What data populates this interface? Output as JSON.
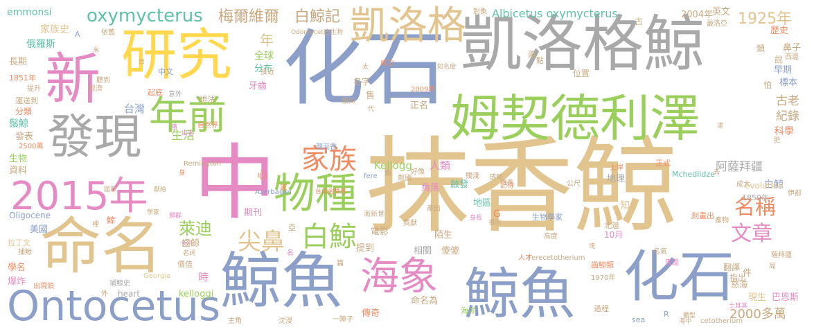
{
  "colors": {
    "tan": "#e2c48f",
    "slate": "#8b9fc8",
    "green": "#9bcf5c",
    "pink": "#e68ac3",
    "yellow": "#ffd84d",
    "orange": "#f08b62",
    "teal": "#5fc2a6",
    "gray": "#a9a9a9",
    "brown": "#c9a980"
  },
  "words": [
    {
      "text": "抹香鯨"
    },
    {
      "text": "化石"
    },
    {
      "text": "凱洛格鯨"
    },
    {
      "text": "中"
    },
    {
      "text": "研究"
    },
    {
      "text": "新"
    },
    {
      "text": "鯨魚"
    },
    {
      "text": "鯨魚"
    },
    {
      "text": "化石"
    },
    {
      "text": "姆契德利澤"
    },
    {
      "text": "命名"
    },
    {
      "text": "發現"
    },
    {
      "text": "Ontocetus"
    },
    {
      "text": "2015年"
    },
    {
      "text": "凱洛格"
    },
    {
      "text": "海象"
    },
    {
      "text": "年前"
    },
    {
      "text": "物種"
    },
    {
      "text": "家族"
    },
    {
      "text": "oxymycterus"
    },
    {
      "text": "尖鼻"
    },
    {
      "text": "白鯨"
    },
    {
      "text": "名稱"
    },
    {
      "text": "文章"
    },
    {
      "text": "梅爾維爾"
    },
    {
      "text": "白鯨記"
    },
    {
      "text": "1925年"
    },
    {
      "text": "Albicetus oxymycterus"
    },
    {
      "text": "阿薩拜疆"
    },
    {
      "text": "2000多萬"
    },
    {
      "text": "Kellogg"
    },
    {
      "text": "萊迪"
    },
    {
      "text": "家族史"
    },
    {
      "text": "emmonsi"
    },
    {
      "text": "2004年"
    },
    {
      "text": "英文"
    },
    {
      "text": "歷史"
    },
    {
      "text": "鼻子"
    },
    {
      "text": "早期"
    },
    {
      "text": "標本"
    },
    {
      "text": "古老"
    },
    {
      "text": "紀錄"
    },
    {
      "text": "科學"
    },
    {
      "text": "俄羅斯"
    },
    {
      "text": "長期"
    },
    {
      "text": "1851年"
    },
    {
      "text": "運送到"
    },
    {
      "text": "分類"
    },
    {
      "text": "鬚鯨"
    },
    {
      "text": "發表"
    },
    {
      "text": "2500萬"
    },
    {
      "text": "生物"
    },
    {
      "text": "資料"
    },
    {
      "text": "全球"
    },
    {
      "text": "分布"
    },
    {
      "text": "牙齒"
    },
    {
      "text": "台灣"
    },
    {
      "text": "生活"
    },
    {
      "text": "人類"
    },
    {
      "text": "啟發"
    },
    {
      "text": "角落"
    },
    {
      "text": "地理"
    },
    {
      "text": "地區"
    },
    {
      "text": "白鯨"
    },
    {
      "text": "1859年"
    },
    {
      "text": "evolution"
    },
    {
      "text": "Oligocene"
    },
    {
      "text": "美國"
    },
    {
      "text": "學名"
    },
    {
      "text": "爆炸"
    },
    {
      "text": "提到"
    },
    {
      "text": "電影"
    },
    {
      "text": "期刊"
    },
    {
      "text": "齒鯨"
    },
    {
      "text": "相關"
    },
    {
      "text": "傻傻"
    },
    {
      "text": "陌生"
    },
    {
      "text": "齒鯨類"
    },
    {
      "text": "翻譯"
    },
    {
      "text": "現生"
    },
    {
      "text": "巴恩斯"
    },
    {
      "text": "命名為"
    },
    {
      "text": "傳奇"
    },
    {
      "text": "海洋"
    },
    {
      "text": "kelloggi"
    },
    {
      "text": "heart"
    },
    {
      "text": "sea"
    },
    {
      "text": "Georgia"
    },
    {
      "text": "Ferecetotherium"
    },
    {
      "text": "cetotherium"
    },
    {
      "text": "Mchedlidze"
    },
    {
      "text": "Azerbaijan"
    },
    {
      "text": "Remington"
    },
    {
      "text": "Odontoceti"
    },
    {
      "text": "2009年"
    },
    {
      "text": "正名"
    },
    {
      "text": "過程"
    },
    {
      "text": "1970年"
    },
    {
      "text": "10月"
    },
    {
      "text": "生物學家"
    },
    {
      "text": "指出"
    },
    {
      "text": "怒海"
    },
    {
      "text": "土耳其"
    },
    {
      "text": "名字"
    },
    {
      "text": "中文"
    },
    {
      "text": "想法"
    },
    {
      "text": "自然界"
    },
    {
      "text": "龍涎香"
    },
    {
      "text": "捕鯨史"
    },
    {
      "text": "出現頭"
    },
    {
      "text": "拉丁文"
    },
    {
      "text": "捕鯨"
    },
    {
      "text": "價值"
    },
    {
      "text": "時"
    },
    {
      "text": "提升"
    },
    {
      "text": "起底"
    },
    {
      "text": "經濟"
    },
    {
      "text": "意外"
    },
    {
      "text": "G"
    },
    {
      "text": "R"
    },
    {
      "text": "A"
    },
    {
      "text": "件"
    },
    {
      "text": "說"
    },
    {
      "text": "怕"
    },
    {
      "text": "類"
    },
    {
      "text": "點"
    },
    {
      "text": "兩"
    },
    {
      "text": "古"
    },
    {
      "text": "年"
    },
    {
      "text": "心"
    },
    {
      "text": "家"
    },
    {
      "text": "鯨"
    },
    {
      "text": "篇"
    },
    {
      "text": "知"
    },
    {
      "text": "最洛亞"
    },
    {
      "text": "西邊"
    },
    {
      "text": "位置"
    },
    {
      "text": "公尺"
    },
    {
      "text": "東邊"
    },
    {
      "text": "伊部"
    },
    {
      "text": "產物"
    },
    {
      "text": "成大"
    },
    {
      "text": "刻畫出"
    },
    {
      "text": "北邊"
    },
    {
      "text": "上岸"
    },
    {
      "text": "正式"
    },
    {
      "text": "名氣"
    },
    {
      "text": "薩拜疆"
    },
    {
      "text": "局"
    },
    {
      "text": "體型"
    },
    {
      "text": "海中"
    },
    {
      "text": "高度"
    },
    {
      "text": "人才"
    },
    {
      "text": "塊"
    },
    {
      "text": "祖宗"
    },
    {
      "text": "身長"
    },
    {
      "text": "產出"
    },
    {
      "text": "貢獻"
    },
    {
      "text": "漸新世"
    },
    {
      "text": "記得"
    },
    {
      "text": "擱淺"
    },
    {
      "text": "感到"
    },
    {
      "text": "台南金華路"
    },
    {
      "text": "fere"
    },
    {
      "text": "趣"
    },
    {
      "text": "鄰國"
    },
    {
      "text": "好像"
    },
    {
      "text": "國家"
    },
    {
      "text": "獻給"
    },
    {
      "text": "學家"
    },
    {
      "text": "類群"
    },
    {
      "text": "十八"
    },
    {
      "text": "名詞"
    },
    {
      "text": "亞"
    },
    {
      "text": "裡"
    },
    {
      "text": "名"
    },
    {
      "text": "主角"
    },
    {
      "text": "沈浸"
    },
    {
      "text": "外"
    },
    {
      "text": "一陣子"
    },
    {
      "text": "威力"
    },
    {
      "text": "類似"
    },
    {
      "text": "知名度"
    },
    {
      "text": "太"
    },
    {
      "text": "古生物"
    },
    {
      "text": "依舊"
    },
    {
      "text": "對象"
    },
    {
      "text": "末"
    },
    {
      "text": "目"
    },
    {
      "text": "聽到"
    },
    {
      "text": "接近"
    },
    {
      "text": "代"
    },
    {
      "text": "售"
    },
    {
      "text": "猪"
    },
    {
      "text": "出名"
    },
    {
      "text": "撫養"
    },
    {
      "text": "身"
    },
    {
      "text": "肥"
    },
    {
      "text": "達"
    },
    {
      "text": "去"
    }
  ]
}
